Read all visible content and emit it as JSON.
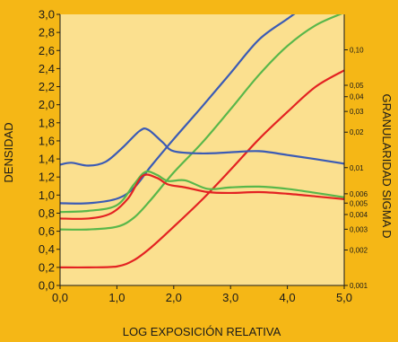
{
  "chart_data": {
    "type": "line",
    "xlabel": "LOG EXPOSICIÓN RELATIVA",
    "ylabel": "DENSIDAD",
    "y2label": "GRANULARIDAD SIGMA D",
    "xlim": [
      0,
      5
    ],
    "ylim": [
      0,
      3
    ],
    "x_ticks": [
      "0,0",
      "1,0",
      "2,0",
      "3,0",
      "4,0",
      "5,0"
    ],
    "x_tick_values": [
      0,
      1,
      2,
      3,
      4,
      5
    ],
    "y_ticks": [
      "0,0",
      "0,2",
      "0,4",
      "0,6",
      "0,8",
      "1,0",
      "1,2",
      "1,4",
      "1,6",
      "1,8",
      "2,0",
      "2,2",
      "2,4",
      "2,6",
      "2,8",
      "3,0"
    ],
    "y_tick_values": [
      0,
      0.2,
      0.4,
      0.6,
      0.8,
      1.0,
      1.2,
      1.4,
      1.6,
      1.8,
      2.0,
      2.2,
      2.4,
      2.6,
      2.8,
      3.0
    ],
    "y2_scale": "log",
    "y2lim": [
      0.001,
      0.2
    ],
    "y2_ticks": [
      "0,10",
      "0,05",
      "0,04",
      "0,03",
      "0,02",
      "0,01",
      "0,006",
      "0,005",
      "0,004",
      "0,003",
      "0,002",
      "0,001"
    ],
    "y2_tick_values": [
      0.1,
      0.05,
      0.04,
      0.03,
      0.02,
      0.01,
      0.006,
      0.005,
      0.004,
      0.003,
      0.002,
      0.001
    ],
    "grid": false,
    "background": "#fbe08f",
    "page_background": "#f5b716",
    "series": [
      {
        "color": "#3b5bb5",
        "role": "density",
        "points": [
          [
            0,
            0.91
          ],
          [
            0.5,
            0.91
          ],
          [
            1.0,
            0.96
          ],
          [
            1.3,
            1.08
          ],
          [
            1.6,
            1.32
          ],
          [
            2.0,
            1.62
          ],
          [
            2.5,
            1.98
          ],
          [
            3.0,
            2.35
          ],
          [
            3.5,
            2.72
          ],
          [
            4.0,
            2.95
          ],
          [
            4.5,
            3.17
          ],
          [
            5.0,
            3.36
          ]
        ]
      },
      {
        "color": "#59b74a",
        "role": "density",
        "points": [
          [
            0,
            0.62
          ],
          [
            0.5,
            0.62
          ],
          [
            1.0,
            0.65
          ],
          [
            1.3,
            0.75
          ],
          [
            1.6,
            0.95
          ],
          [
            2.0,
            1.25
          ],
          [
            2.5,
            1.58
          ],
          [
            3.0,
            1.95
          ],
          [
            3.5,
            2.33
          ],
          [
            4.0,
            2.65
          ],
          [
            4.5,
            2.88
          ],
          [
            5.0,
            3.02
          ]
        ]
      },
      {
        "color": "#e32222",
        "role": "density",
        "points": [
          [
            0,
            0.2
          ],
          [
            0.5,
            0.2
          ],
          [
            1.0,
            0.21
          ],
          [
            1.3,
            0.28
          ],
          [
            1.6,
            0.42
          ],
          [
            2.0,
            0.65
          ],
          [
            2.5,
            0.95
          ],
          [
            3.0,
            1.28
          ],
          [
            3.5,
            1.62
          ],
          [
            4.0,
            1.92
          ],
          [
            4.5,
            2.2
          ],
          [
            5.0,
            2.38
          ]
        ]
      },
      {
        "color": "#3b5bb5",
        "role": "granularity",
        "points": [
          [
            0,
            0.0106
          ],
          [
            0.2,
            0.011
          ],
          [
            0.5,
            0.0104
          ],
          [
            0.8,
            0.0112
          ],
          [
            1.1,
            0.0148
          ],
          [
            1.4,
            0.0205
          ],
          [
            1.55,
            0.021
          ],
          [
            1.8,
            0.0165
          ],
          [
            2.0,
            0.0138
          ],
          [
            2.5,
            0.0132
          ],
          [
            3.0,
            0.0135
          ],
          [
            3.5,
            0.0138
          ],
          [
            4.0,
            0.0128
          ],
          [
            4.5,
            0.0118
          ],
          [
            5.0,
            0.0108
          ]
        ]
      },
      {
        "color": "#59b74a",
        "role": "granularity",
        "points": [
          [
            0,
            0.0042
          ],
          [
            0.5,
            0.0043
          ],
          [
            1.0,
            0.0048
          ],
          [
            1.3,
            0.0072
          ],
          [
            1.5,
            0.0092
          ],
          [
            1.7,
            0.0087
          ],
          [
            1.9,
            0.0077
          ],
          [
            2.2,
            0.0078
          ],
          [
            2.6,
            0.0066
          ],
          [
            3.0,
            0.0068
          ],
          [
            3.5,
            0.0069
          ],
          [
            4.0,
            0.0066
          ],
          [
            4.5,
            0.0061
          ],
          [
            5.0,
            0.0056
          ]
        ]
      },
      {
        "color": "#e32222",
        "role": "granularity",
        "points": [
          [
            0,
            0.0037
          ],
          [
            0.5,
            0.0037
          ],
          [
            0.9,
            0.0041
          ],
          [
            1.2,
            0.0055
          ],
          [
            1.45,
            0.0085
          ],
          [
            1.7,
            0.0082
          ],
          [
            1.9,
            0.0072
          ],
          [
            2.2,
            0.0068
          ],
          [
            2.6,
            0.0062
          ],
          [
            3.0,
            0.0061
          ],
          [
            3.5,
            0.0062
          ],
          [
            4.0,
            0.006
          ],
          [
            4.5,
            0.0057
          ],
          [
            5.0,
            0.0054
          ]
        ]
      }
    ]
  }
}
